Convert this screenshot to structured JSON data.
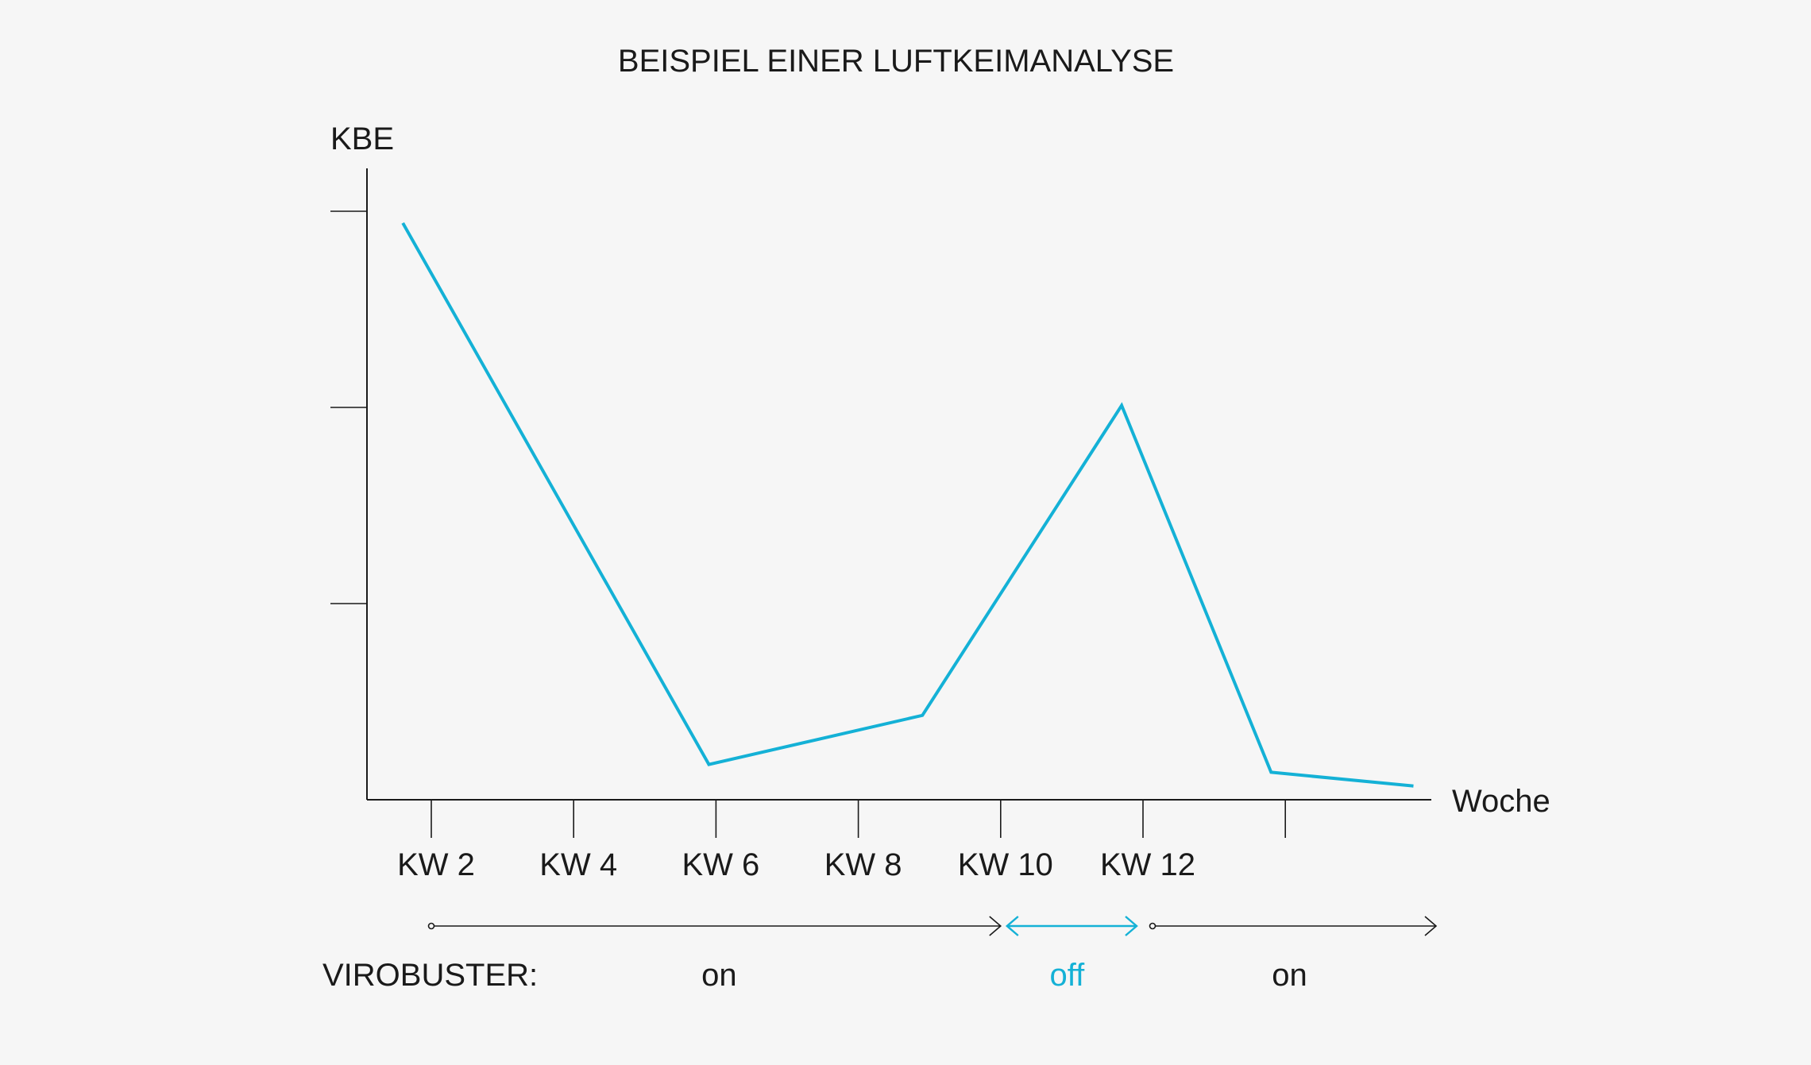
{
  "chart_data": {
    "type": "line",
    "title": "BEISPIEL EINER LUFTKEIMANALYSE",
    "ylabel": "KBE",
    "xlabel": "Woche",
    "x_ticks": [
      "KW 2",
      "KW 4",
      "KW 6",
      "KW 8",
      "KW 10",
      "KW 12",
      ""
    ],
    "ylim": [
      0,
      3
    ],
    "y_tick_values": [
      1,
      2,
      3
    ],
    "y_tick_labels": [
      "",
      "",
      ""
    ],
    "grid": false,
    "series": [
      {
        "color": "#14b1d6",
        "points": [
          {
            "x": 1.6,
            "y": 2.94
          },
          {
            "x": 5.9,
            "y": 0.18
          },
          {
            "x": 8.9,
            "y": 0.43
          },
          {
            "x": 11.7,
            "y": 2.01
          },
          {
            "x": 13.8,
            "y": 0.14
          },
          {
            "x": 15.8,
            "y": 0.07
          }
        ]
      }
    ]
  },
  "virobuster": {
    "label": "VIROBUSTER:",
    "periods": [
      {
        "state": "on",
        "from": 2,
        "to": 10,
        "color": "#1a1a1a"
      },
      {
        "state": "off",
        "from": 10,
        "to": 12,
        "color": "#14b1d6"
      },
      {
        "state": "on",
        "from": 12,
        "to": 16,
        "color": "#1a1a1a"
      }
    ]
  }
}
